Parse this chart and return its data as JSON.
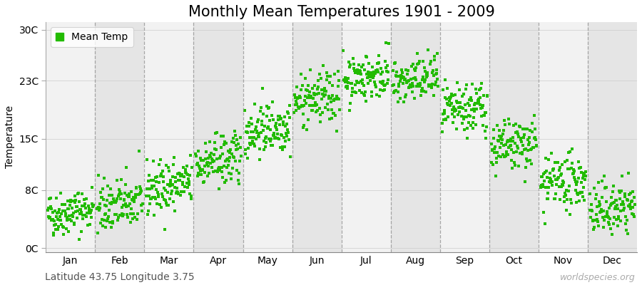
{
  "title": "Monthly Mean Temperatures 1901 - 2009",
  "ylabel": "Temperature",
  "subtitle_left": "Latitude 43.75 Longitude 3.75",
  "watermark": "worldspecies.org",
  "legend_label": "Mean Temp",
  "yticks": [
    0,
    8,
    15,
    23,
    30
  ],
  "ytick_labels": [
    "0C",
    "8C",
    "15C",
    "23C",
    "30C"
  ],
  "ylim": [
    -0.5,
    31
  ],
  "xlim": [
    0,
    12
  ],
  "dot_color": "#22bb00",
  "dot_size": 6,
  "bg_color": "#ffffff",
  "band_color_white": "#f2f2f2",
  "band_color_gray": "#e5e5e5",
  "dash_color": "#888888",
  "months": [
    "Jan",
    "Feb",
    "Mar",
    "Apr",
    "May",
    "Jun",
    "Jul",
    "Aug",
    "Sep",
    "Oct",
    "Nov",
    "Dec"
  ],
  "month_tick_offsets": [
    0.5,
    1.5,
    2.5,
    3.5,
    4.5,
    5.5,
    6.5,
    7.5,
    8.5,
    9.5,
    10.5,
    11.5
  ],
  "mean_temps": [
    5.0,
    6.0,
    8.5,
    12.0,
    16.5,
    20.5,
    23.5,
    23.0,
    19.0,
    14.0,
    9.0,
    5.5
  ],
  "std_temps": [
    1.5,
    1.8,
    1.8,
    1.8,
    1.8,
    1.8,
    1.6,
    1.6,
    1.8,
    1.8,
    1.8,
    1.8
  ],
  "n_years": 109,
  "seed": 42,
  "title_fontsize": 15,
  "axis_fontsize": 10,
  "tick_fontsize": 10,
  "legend_fontsize": 10,
  "watermark_fontsize": 9
}
